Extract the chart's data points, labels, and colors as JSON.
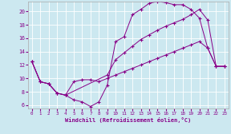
{
  "xlabel": "Windchill (Refroidissement éolien,°C)",
  "background_color": "#cce8f0",
  "line_color": "#880088",
  "xlim_min": -0.5,
  "xlim_max": 23.5,
  "ylim_min": 5.5,
  "ylim_max": 21.5,
  "xticks": [
    0,
    1,
    2,
    3,
    4,
    5,
    6,
    7,
    8,
    9,
    10,
    11,
    12,
    13,
    14,
    15,
    16,
    17,
    18,
    19,
    20,
    21,
    22,
    23
  ],
  "yticks": [
    6,
    8,
    10,
    12,
    14,
    16,
    18,
    20
  ],
  "series1_x": [
    0,
    1,
    2,
    3,
    4,
    5,
    6,
    7,
    8,
    9,
    10,
    11,
    12,
    13,
    14,
    15,
    16,
    17,
    18,
    19,
    20,
    21,
    22,
    23
  ],
  "series1_y": [
    12.5,
    9.5,
    9.2,
    7.8,
    7.5,
    6.8,
    6.5,
    5.8,
    6.5,
    9.0,
    15.5,
    16.2,
    19.5,
    20.3,
    21.2,
    21.5,
    21.3,
    21.0,
    21.0,
    20.3,
    19.0,
    14.5,
    11.8,
    11.8
  ],
  "series2_x": [
    0,
    1,
    2,
    3,
    4,
    9,
    10,
    11,
    12,
    13,
    14,
    15,
    16,
    17,
    18,
    19,
    20,
    21,
    22,
    23
  ],
  "series2_y": [
    12.5,
    9.5,
    9.2,
    7.8,
    7.5,
    10.5,
    12.8,
    13.8,
    14.8,
    15.8,
    16.5,
    17.2,
    17.8,
    18.3,
    18.8,
    19.5,
    20.3,
    18.7,
    11.8,
    11.8
  ],
  "series3_x": [
    0,
    1,
    2,
    3,
    4,
    5,
    6,
    7,
    8,
    9,
    10,
    11,
    12,
    13,
    14,
    15,
    16,
    17,
    18,
    19,
    20,
    21,
    22,
    23
  ],
  "series3_y": [
    12.5,
    9.5,
    9.2,
    7.8,
    7.5,
    9.5,
    9.8,
    9.8,
    9.5,
    10.0,
    10.5,
    11.0,
    11.5,
    12.0,
    12.5,
    13.0,
    13.5,
    14.0,
    14.5,
    15.0,
    15.5,
    14.5,
    11.8,
    11.8
  ]
}
